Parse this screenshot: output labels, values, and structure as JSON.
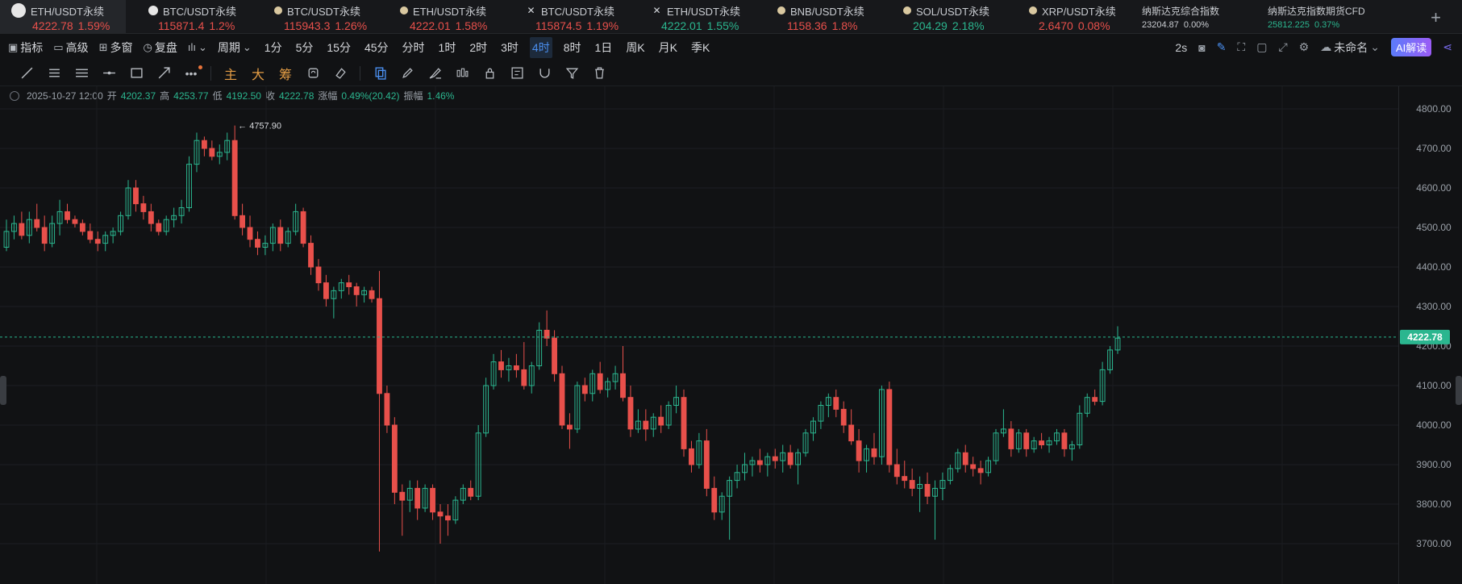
{
  "tickers": [
    {
      "name": "ETH/USDT永续",
      "price": "4222.78",
      "change": "1.59%",
      "dir": "down",
      "icon": "eth-logo-icon",
      "active": true
    },
    {
      "name": "BTC/USDT永续",
      "price": "115871.4",
      "change": "1.2%",
      "dir": "down",
      "icon": "btc-logo-icon"
    },
    {
      "name": "BTC/USDT永续",
      "price": "115943.3",
      "change": "1.26%",
      "dir": "down",
      "icon": "coin-icon"
    },
    {
      "name": "ETH/USDT永续",
      "price": "4222.01",
      "change": "1.58%",
      "dir": "down",
      "icon": "coin-icon"
    },
    {
      "name": "BTC/USDT永续",
      "price": "115874.5",
      "change": "1.19%",
      "dir": "down",
      "icon": "x-logo-icon"
    },
    {
      "name": "ETH/USDT永续",
      "price": "4222.01",
      "change": "1.55%",
      "dir": "up",
      "icon": "x-logo-icon"
    },
    {
      "name": "BNB/USDT永续",
      "price": "1158.36",
      "change": "1.8%",
      "dir": "down",
      "icon": "coin-icon"
    },
    {
      "name": "SOL/USDT永续",
      "price": "204.29",
      "change": "2.18%",
      "dir": "up",
      "icon": "coin-icon"
    },
    {
      "name": "XRP/USDT永续",
      "price": "2.6470",
      "change": "0.08%",
      "dir": "down",
      "icon": "coin-icon"
    },
    {
      "name": "纳斯达克综合指数",
      "price": "23204.87",
      "change": "0.00%",
      "dir": "neutral",
      "small": true
    },
    {
      "name": "纳斯达克指数期货CFD",
      "price": "25812.225",
      "change": "0.37%",
      "dir": "up",
      "small": true
    }
  ],
  "toolbar": {
    "indicator": "指标",
    "advanced": "高级",
    "multi_window": "多窗",
    "replay": "复盘",
    "period": "周期",
    "periods": [
      "1分",
      "5分",
      "15分",
      "45分",
      "分时",
      "1时",
      "2时",
      "3时",
      "4时",
      "8时",
      "1日",
      "周K",
      "月K",
      "季K"
    ],
    "selected_period": "4时",
    "refresh": "2s",
    "layout_name": "未命名",
    "ai": "AI解读"
  },
  "drawing_tools": {
    "main": "主",
    "big": "大",
    "chips": "筹"
  },
  "ohlc": {
    "date": "2025-10-27 12:00",
    "open_label": "开",
    "open": "4202.37",
    "high_label": "高",
    "high": "4253.77",
    "low_label": "低",
    "low": "4192.50",
    "close_label": "收",
    "close": "4222.78",
    "change_label": "涨幅",
    "change": "0.49%(20.42)",
    "amp_label": "振幅",
    "amp": "1.46%"
  },
  "colors": {
    "up": "#2bb68f",
    "down": "#e8504b",
    "accent": "#4a8ff0",
    "bg": "#111214"
  },
  "chart_data": {
    "type": "candlestick",
    "ylim": [
      3650,
      4850
    ],
    "yticks": [
      "4800.00",
      "4700.00",
      "4600.00",
      "4500.00",
      "4400.00",
      "4300.00",
      "4200.00",
      "4100.00",
      "4000.00",
      "3900.00",
      "3800.00",
      "3700.00"
    ],
    "yticks_values": [
      4800,
      4700,
      4600,
      4500,
      4400,
      4300,
      4200,
      4100,
      4000,
      3900,
      3800,
      3700
    ],
    "last_price": 4222.78,
    "last_price_label": "4222.78",
    "max_label": "4757.90",
    "max_value": 4757.9,
    "candles": [
      [
        4450,
        4520,
        4440,
        4490
      ],
      [
        4490,
        4530,
        4470,
        4510
      ],
      [
        4510,
        4540,
        4470,
        4480
      ],
      [
        4480,
        4540,
        4460,
        4520
      ],
      [
        4520,
        4560,
        4490,
        4500
      ],
      [
        4500,
        4530,
        4440,
        4460
      ],
      [
        4460,
        4530,
        4450,
        4510
      ],
      [
        4510,
        4570,
        4480,
        4540
      ],
      [
        4540,
        4560,
        4510,
        4520
      ],
      [
        4520,
        4530,
        4500,
        4510
      ],
      [
        4510,
        4520,
        4480,
        4490
      ],
      [
        4490,
        4510,
        4460,
        4470
      ],
      [
        4470,
        4490,
        4440,
        4460
      ],
      [
        4460,
        4490,
        4440,
        4480
      ],
      [
        4480,
        4500,
        4460,
        4490
      ],
      [
        4490,
        4540,
        4480,
        4530
      ],
      [
        4530,
        4620,
        4520,
        4600
      ],
      [
        4600,
        4620,
        4540,
        4560
      ],
      [
        4560,
        4580,
        4520,
        4540
      ],
      [
        4540,
        4560,
        4490,
        4510
      ],
      [
        4510,
        4520,
        4480,
        4490
      ],
      [
        4490,
        4530,
        4480,
        4520
      ],
      [
        4520,
        4550,
        4500,
        4530
      ],
      [
        4530,
        4570,
        4510,
        4550
      ],
      [
        4550,
        4680,
        4540,
        4660
      ],
      [
        4660,
        4740,
        4640,
        4720
      ],
      [
        4720,
        4730,
        4680,
        4700
      ],
      [
        4700,
        4720,
        4670,
        4680
      ],
      [
        4680,
        4710,
        4660,
        4690
      ],
      [
        4690,
        4740,
        4670,
        4720
      ],
      [
        4720,
        4757.9,
        4520,
        4530
      ],
      [
        4530,
        4560,
        4480,
        4500
      ],
      [
        4500,
        4530,
        4450,
        4470
      ],
      [
        4470,
        4490,
        4430,
        4450
      ],
      [
        4450,
        4480,
        4430,
        4460
      ],
      [
        4460,
        4510,
        4440,
        4500
      ],
      [
        4500,
        4520,
        4440,
        4460
      ],
      [
        4460,
        4500,
        4450,
        4490
      ],
      [
        4490,
        4560,
        4480,
        4540
      ],
      [
        4540,
        4550,
        4450,
        4460
      ],
      [
        4460,
        4480,
        4380,
        4400
      ],
      [
        4400,
        4420,
        4340,
        4360
      ],
      [
        4360,
        4380,
        4300,
        4320
      ],
      [
        4320,
        4350,
        4270,
        4340
      ],
      [
        4340,
        4370,
        4320,
        4360
      ],
      [
        4360,
        4380,
        4330,
        4350
      ],
      [
        4350,
        4360,
        4300,
        4330
      ],
      [
        4330,
        4350,
        4310,
        4340
      ],
      [
        4340,
        4350,
        4310,
        4320
      ],
      [
        4320,
        4390,
        3680,
        4080
      ],
      [
        4080,
        4100,
        3980,
        4000
      ],
      [
        4000,
        4020,
        3800,
        3830
      ],
      [
        3830,
        3850,
        3720,
        3810
      ],
      [
        3810,
        3860,
        3780,
        3840
      ],
      [
        3840,
        3860,
        3760,
        3790
      ],
      [
        3790,
        3850,
        3780,
        3840
      ],
      [
        3840,
        3850,
        3760,
        3780
      ],
      [
        3780,
        3800,
        3700,
        3770
      ],
      [
        3770,
        3800,
        3720,
        3760
      ],
      [
        3760,
        3820,
        3750,
        3810
      ],
      [
        3810,
        3850,
        3800,
        3840
      ],
      [
        3840,
        3860,
        3810,
        3820
      ],
      [
        3820,
        4000,
        3810,
        3980
      ],
      [
        3980,
        4120,
        3970,
        4100
      ],
      [
        4100,
        4180,
        4090,
        4160
      ],
      [
        4160,
        4190,
        4120,
        4140
      ],
      [
        4140,
        4170,
        4110,
        4150
      ],
      [
        4150,
        4180,
        4120,
        4140
      ],
      [
        4140,
        4210,
        4090,
        4100
      ],
      [
        4100,
        4160,
        4080,
        4150
      ],
      [
        4150,
        4260,
        4140,
        4240
      ],
      [
        4240,
        4290,
        4200,
        4220
      ],
      [
        4220,
        4240,
        4110,
        4130
      ],
      [
        4130,
        4150,
        3990,
        4000
      ],
      [
        4000,
        4030,
        3940,
        3990
      ],
      [
        3990,
        4110,
        3980,
        4100
      ],
      [
        4100,
        4120,
        4060,
        4080
      ],
      [
        4080,
        4140,
        4060,
        4130
      ],
      [
        4130,
        4160,
        4080,
        4090
      ],
      [
        4090,
        4120,
        4070,
        4110
      ],
      [
        4110,
        4150,
        4090,
        4130
      ],
      [
        4130,
        4200,
        4060,
        4070
      ],
      [
        4070,
        4100,
        3970,
        3990
      ],
      [
        3990,
        4040,
        3980,
        4010
      ],
      [
        4010,
        4040,
        3960,
        3990
      ],
      [
        3990,
        4030,
        3970,
        4020
      ],
      [
        4020,
        4050,
        3980,
        4000
      ],
      [
        4000,
        4060,
        3990,
        4050
      ],
      [
        4050,
        4100,
        4030,
        4070
      ],
      [
        4070,
        4090,
        3920,
        3940
      ],
      [
        3940,
        3960,
        3880,
        3900
      ],
      [
        3900,
        3980,
        3890,
        3960
      ],
      [
        3960,
        3990,
        3820,
        3840
      ],
      [
        3840,
        3870,
        3760,
        3780
      ],
      [
        3780,
        3830,
        3760,
        3820
      ],
      [
        3820,
        3870,
        3710,
        3860
      ],
      [
        3860,
        3900,
        3840,
        3880
      ],
      [
        3880,
        3930,
        3860,
        3900
      ],
      [
        3900,
        3920,
        3870,
        3910
      ],
      [
        3910,
        3940,
        3880,
        3900
      ],
      [
        3900,
        3930,
        3870,
        3920
      ],
      [
        3920,
        3940,
        3890,
        3910
      ],
      [
        3910,
        3950,
        3880,
        3930
      ],
      [
        3930,
        3950,
        3890,
        3900
      ],
      [
        3900,
        3940,
        3850,
        3930
      ],
      [
        3930,
        3990,
        3920,
        3980
      ],
      [
        3980,
        4020,
        3960,
        4010
      ],
      [
        4010,
        4060,
        3990,
        4050
      ],
      [
        4050,
        4080,
        4020,
        4070
      ],
      [
        4070,
        4090,
        4020,
        4040
      ],
      [
        4040,
        4060,
        3980,
        4000
      ],
      [
        4000,
        4040,
        3950,
        3960
      ],
      [
        3960,
        3990,
        3880,
        3910
      ],
      [
        3910,
        3950,
        3880,
        3940
      ],
      [
        3940,
        3980,
        3900,
        3920
      ],
      [
        3920,
        4100,
        3900,
        4090
      ],
      [
        4090,
        4110,
        3880,
        3900
      ],
      [
        3900,
        3940,
        3850,
        3870
      ],
      [
        3870,
        3910,
        3840,
        3860
      ],
      [
        3860,
        3890,
        3820,
        3840
      ],
      [
        3840,
        3870,
        3780,
        3850
      ],
      [
        3850,
        3880,
        3800,
        3820
      ],
      [
        3820,
        3860,
        3710,
        3840
      ],
      [
        3840,
        3880,
        3810,
        3860
      ],
      [
        3860,
        3900,
        3850,
        3890
      ],
      [
        3890,
        3940,
        3880,
        3930
      ],
      [
        3930,
        3950,
        3880,
        3900
      ],
      [
        3900,
        3920,
        3870,
        3890
      ],
      [
        3890,
        3910,
        3850,
        3880
      ],
      [
        3880,
        3920,
        3870,
        3910
      ],
      [
        3910,
        3990,
        3900,
        3980
      ],
      [
        3980,
        4040,
        3970,
        3990
      ],
      [
        3990,
        4010,
        3920,
        3940
      ],
      [
        3940,
        3990,
        3930,
        3980
      ],
      [
        3980,
        3990,
        3920,
        3940
      ],
      [
        3940,
        3970,
        3930,
        3960
      ],
      [
        3960,
        3980,
        3940,
        3950
      ],
      [
        3950,
        3970,
        3930,
        3960
      ],
      [
        3960,
        3990,
        3950,
        3980
      ],
      [
        3980,
        3990,
        3920,
        3940
      ],
      [
        3940,
        3960,
        3910,
        3950
      ],
      [
        3950,
        4050,
        3940,
        4030
      ],
      [
        4030,
        4080,
        4020,
        4070
      ],
      [
        4070,
        4090,
        4050,
        4060
      ],
      [
        4060,
        4160,
        4050,
        4140
      ],
      [
        4140,
        4200,
        4130,
        4190
      ],
      [
        4190,
        4250,
        4180,
        4220
      ]
    ]
  }
}
